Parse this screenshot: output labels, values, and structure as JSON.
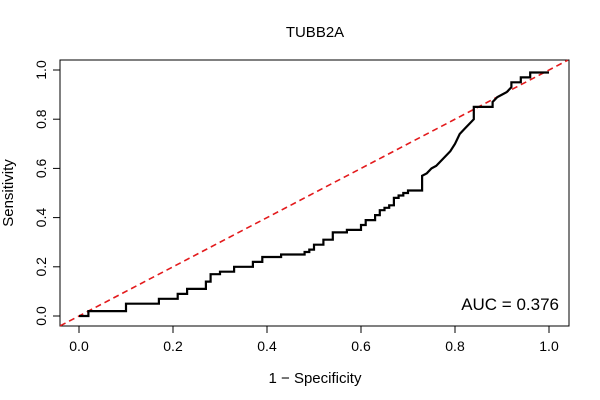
{
  "chart_data": {
    "type": "line",
    "title": "TUBB2A",
    "xlabel": "1 − Specificity",
    "ylabel": "Sensitivity",
    "xlim": [
      0,
      1
    ],
    "ylim": [
      0,
      1
    ],
    "xticks": [
      "0.0",
      "0.2",
      "0.4",
      "0.6",
      "0.8",
      "1.0"
    ],
    "yticks": [
      "0.0",
      "0.2",
      "0.4",
      "0.6",
      "0.8",
      "1.0"
    ],
    "grid": false,
    "legend": "none",
    "annotation": "AUC = 0.376",
    "reference_line": {
      "x": [
        0,
        1
      ],
      "y": [
        0,
        1
      ],
      "color": "#e31a1c",
      "style": "dashed"
    },
    "series": [
      {
        "color": "#000000",
        "x": [
          0.0,
          0.02,
          0.02,
          0.1,
          0.1,
          0.17,
          0.17,
          0.21,
          0.21,
          0.23,
          0.23,
          0.27,
          0.27,
          0.28,
          0.28,
          0.3,
          0.3,
          0.33,
          0.33,
          0.37,
          0.37,
          0.39,
          0.39,
          0.43,
          0.43,
          0.48,
          0.48,
          0.49,
          0.49,
          0.5,
          0.5,
          0.52,
          0.52,
          0.54,
          0.54,
          0.57,
          0.57,
          0.6,
          0.6,
          0.61,
          0.61,
          0.63,
          0.63,
          0.64,
          0.64,
          0.65,
          0.65,
          0.66,
          0.66,
          0.67,
          0.67,
          0.68,
          0.68,
          0.69,
          0.69,
          0.7,
          0.7,
          0.73,
          0.73,
          0.73,
          0.74,
          0.75,
          0.76,
          0.77,
          0.78,
          0.79,
          0.8,
          0.81,
          0.82,
          0.83,
          0.84,
          0.84,
          0.88,
          0.88,
          0.89,
          0.9,
          0.91,
          0.92,
          0.92,
          0.94,
          0.94,
          0.96,
          0.96,
          0.97,
          0.99,
          1.0
        ],
        "y": [
          0.0,
          0.0,
          0.02,
          0.02,
          0.05,
          0.05,
          0.07,
          0.07,
          0.09,
          0.09,
          0.11,
          0.11,
          0.14,
          0.14,
          0.17,
          0.17,
          0.18,
          0.18,
          0.2,
          0.2,
          0.22,
          0.22,
          0.24,
          0.24,
          0.25,
          0.25,
          0.26,
          0.26,
          0.27,
          0.27,
          0.29,
          0.29,
          0.31,
          0.31,
          0.34,
          0.34,
          0.35,
          0.35,
          0.37,
          0.37,
          0.39,
          0.39,
          0.41,
          0.41,
          0.43,
          0.43,
          0.44,
          0.44,
          0.45,
          0.45,
          0.48,
          0.48,
          0.49,
          0.49,
          0.5,
          0.5,
          0.51,
          0.51,
          0.55,
          0.57,
          0.58,
          0.6,
          0.61,
          0.63,
          0.65,
          0.67,
          0.7,
          0.74,
          0.76,
          0.78,
          0.8,
          0.85,
          0.85,
          0.87,
          0.89,
          0.9,
          0.91,
          0.93,
          0.95,
          0.95,
          0.97,
          0.97,
          0.99,
          0.99,
          0.99,
          0.99
        ]
      }
    ]
  }
}
